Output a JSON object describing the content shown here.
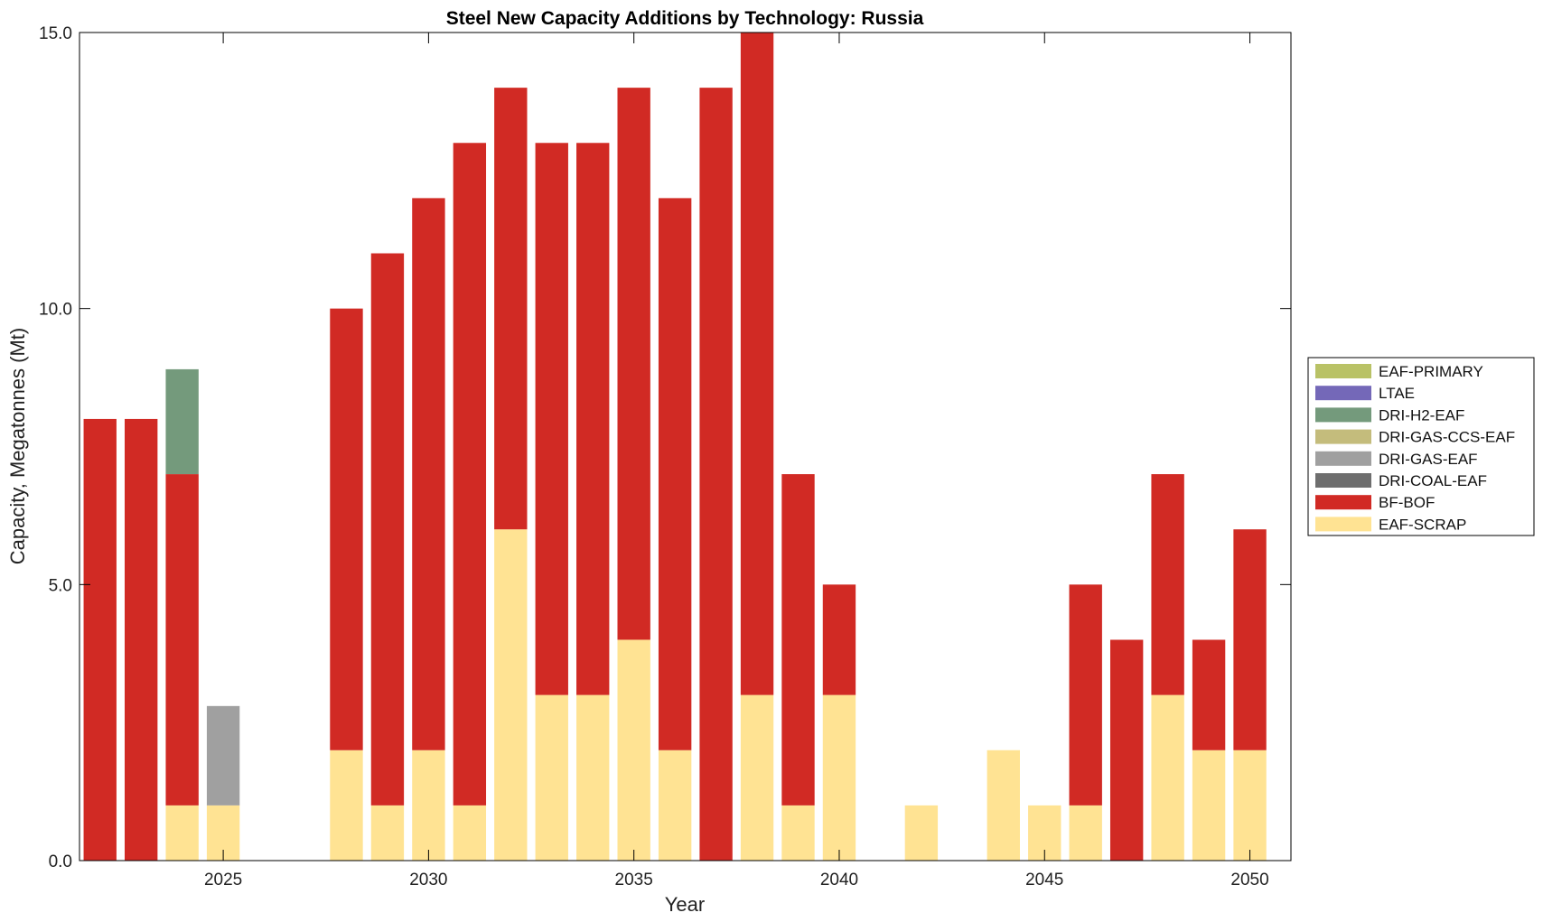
{
  "chart_data": {
    "type": "bar",
    "stacked": true,
    "title": "Steel New Capacity Additions by Technology: Russia",
    "xlabel": "Year",
    "ylabel": "Capacity, Megatonnes (Mt)",
    "ylim": [
      0,
      15
    ],
    "xlim": [
      2021.5,
      2051
    ],
    "yticks": [
      0,
      5,
      10,
      15
    ],
    "ytick_labels": [
      "0.0",
      "5.0",
      "10.0",
      "15.0"
    ],
    "xticks": [
      2025,
      2030,
      2035,
      2040,
      2045,
      2050
    ],
    "xtick_labels": [
      "2025",
      "2030",
      "2035",
      "2040",
      "2045",
      "2050"
    ],
    "grid": false,
    "legend_position": "right",
    "x": [
      2022,
      2023,
      2024,
      2025,
      2026,
      2027,
      2028,
      2029,
      2030,
      2031,
      2032,
      2033,
      2034,
      2035,
      2036,
      2037,
      2038,
      2039,
      2040,
      2041,
      2042,
      2043,
      2044,
      2045,
      2046,
      2047,
      2048,
      2049,
      2050
    ],
    "series": [
      {
        "name": "EAF-SCRAP",
        "color": "#FFE393",
        "values": [
          0,
          0,
          1,
          1,
          0,
          0,
          2,
          1,
          2,
          1,
          6,
          3,
          3,
          4,
          2,
          0,
          3,
          1,
          3,
          0,
          1,
          0,
          2,
          1,
          1,
          0,
          3,
          2,
          2
        ]
      },
      {
        "name": "BF-BOF",
        "color": "#D12A24",
        "values": [
          8,
          8,
          6,
          0,
          0,
          0,
          8,
          10,
          10,
          12,
          8,
          10,
          10,
          10,
          10,
          14,
          12,
          6,
          2,
          0,
          0,
          0,
          0,
          0,
          4,
          4,
          4,
          2,
          4
        ]
      },
      {
        "name": "DRI-COAL-EAF",
        "color": "#6E6E6E",
        "values": [
          0,
          0,
          0,
          0,
          0,
          0,
          0,
          0,
          0,
          0,
          0,
          0,
          0,
          0,
          0,
          0,
          0,
          0,
          0,
          0,
          0,
          0,
          0,
          0,
          0,
          0,
          0,
          0,
          0
        ]
      },
      {
        "name": "DRI-GAS-EAF",
        "color": "#A0A0A0",
        "values": [
          0,
          0,
          0,
          1.8,
          0,
          0,
          0,
          0,
          0,
          0,
          0,
          0,
          0,
          0,
          0,
          0,
          0,
          0,
          0,
          0,
          0,
          0,
          0,
          0,
          0,
          0,
          0,
          0,
          0
        ]
      },
      {
        "name": "DRI-GAS-CCS-EAF",
        "color": "#C4BC7C",
        "values": [
          0,
          0,
          0,
          0,
          0,
          0,
          0,
          0,
          0,
          0,
          0,
          0,
          0,
          0,
          0,
          0,
          0,
          0,
          0,
          0,
          0,
          0,
          0,
          0,
          0,
          0,
          0,
          0,
          0
        ]
      },
      {
        "name": "DRI-H2-EAF",
        "color": "#749A7C",
        "values": [
          0,
          0,
          1.9,
          0,
          0,
          0,
          0,
          0,
          0,
          0,
          0,
          0,
          0,
          0,
          0,
          0,
          0,
          0,
          0,
          0,
          0,
          0,
          0,
          0,
          0,
          0,
          0,
          0,
          0
        ]
      },
      {
        "name": "LTAE",
        "color": "#7468B8",
        "values": [
          0,
          0,
          0,
          0,
          0,
          0,
          0,
          0,
          0,
          0,
          0,
          0,
          0,
          0,
          0,
          0,
          0,
          0,
          0,
          0,
          0,
          0,
          0,
          0,
          0,
          0,
          0,
          0,
          0
        ]
      },
      {
        "name": "EAF-PRIMARY",
        "color": "#B9C266",
        "values": [
          0,
          0,
          0,
          0,
          0,
          0,
          0,
          0,
          0,
          0,
          0,
          0,
          0,
          0,
          0,
          0,
          0,
          0,
          0,
          0,
          0,
          0,
          0,
          0,
          0,
          0,
          0,
          0,
          0
        ]
      }
    ],
    "legend_order": [
      "EAF-PRIMARY",
      "LTAE",
      "DRI-H2-EAF",
      "DRI-GAS-CCS-EAF",
      "DRI-GAS-EAF",
      "DRI-COAL-EAF",
      "BF-BOF",
      "EAF-SCRAP"
    ]
  }
}
